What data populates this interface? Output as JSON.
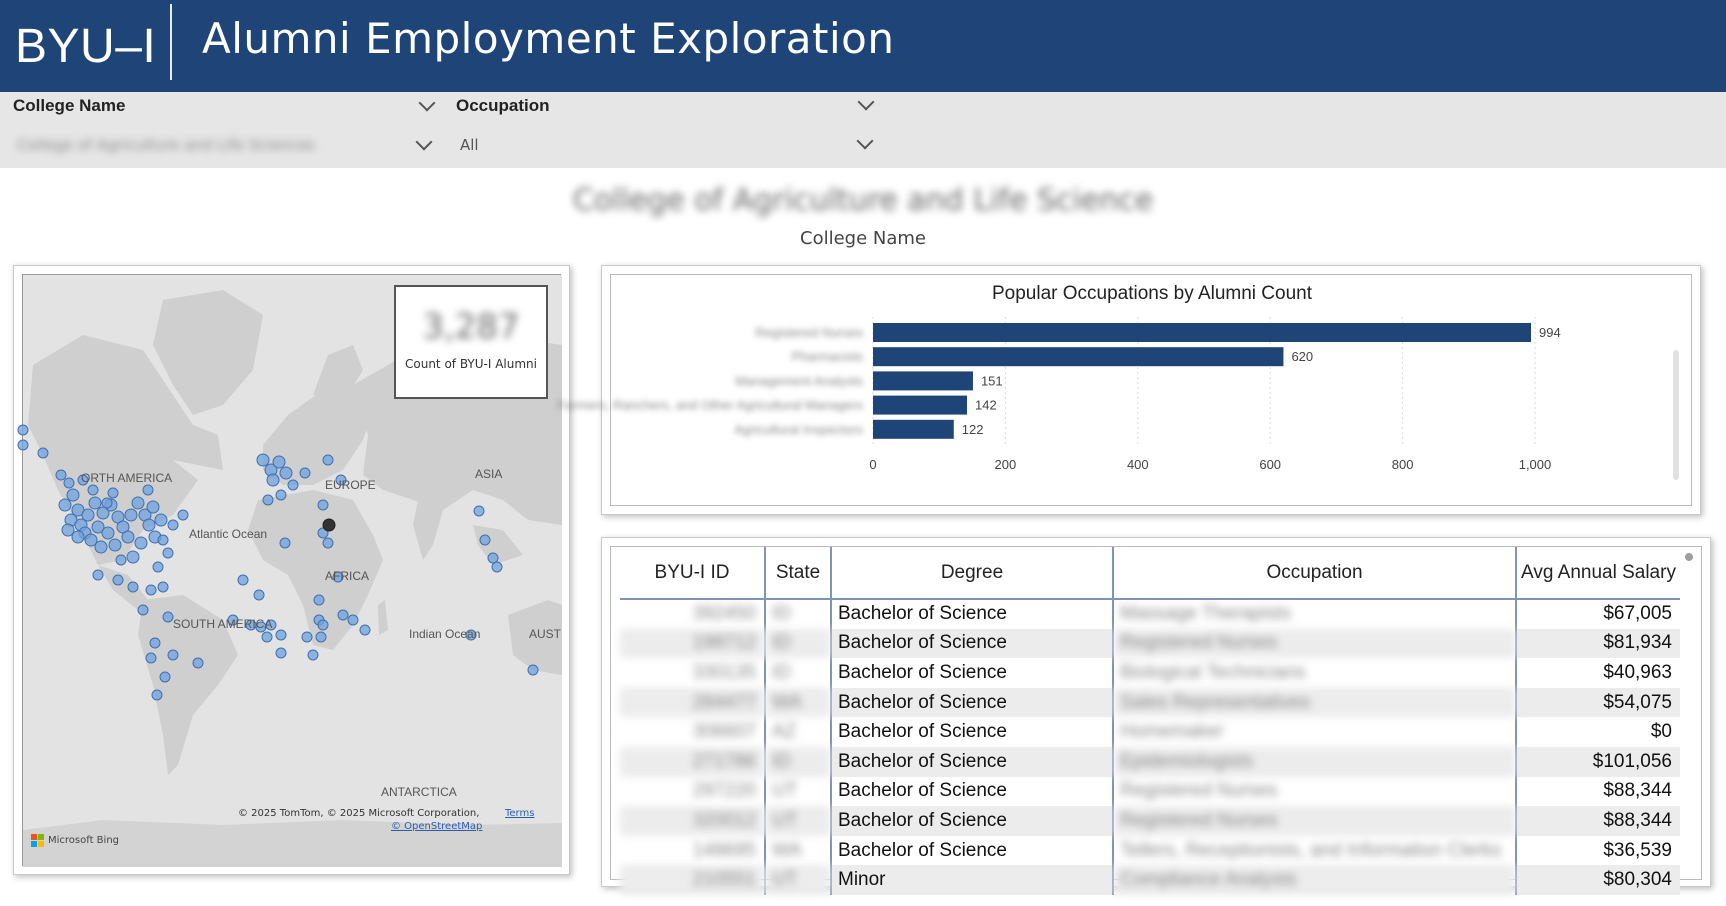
{
  "header": {
    "brand": "BYU–I",
    "title": "Alumni Employment Exploration"
  },
  "slicers": {
    "college": {
      "label": "College Name",
      "value": "College of Agriculture and Life Sciences"
    },
    "occupation": {
      "label": "Occupation",
      "value": "All"
    }
  },
  "selected_college": {
    "name": "College of Agriculture and Life Science",
    "caption": "College Name"
  },
  "map": {
    "legend_value": "3,287",
    "legend_caption": "Count of BYU-I Alumni",
    "labels": {
      "north_america": "ORTH AMERICA",
      "europe": "EUROPE",
      "asia": "ASIA",
      "atlantic": "Atlantic Ocean",
      "africa": "AFRICA",
      "south_america": "SOUTH AMERICA",
      "indian": "Indian Ocean",
      "australia": "AUST",
      "antarctica": "ANTARCTICA"
    },
    "attribution": "© 2025 TomTom, © 2025 Microsoft Corporation,",
    "terms": "Terms",
    "osm": "© OpenStreetMap",
    "bing": "Microsoft Bing"
  },
  "chart_data": {
    "type": "bar",
    "orientation": "horizontal",
    "title": "Popular Occupations by Alumni Count",
    "categories": [
      "Registered Nurses",
      "Pharmacists",
      "Management Analysts",
      "Farmers, Ranchers, and Other Agricultural Managers",
      "Agricultural Inspectors"
    ],
    "values": [
      994,
      620,
      151,
      142,
      122
    ],
    "value_labels": [
      "994",
      "620",
      "151",
      "142",
      "122"
    ],
    "xticks": [
      "0",
      "200",
      "400",
      "600",
      "800",
      "1,000"
    ],
    "xlim": [
      0,
      1000
    ],
    "color": "#1f4578"
  },
  "table": {
    "columns": [
      "BYU-I ID",
      "State",
      "Degree",
      "Occupation",
      "Avg Annual Salary"
    ],
    "rows": [
      {
        "id": "392450",
        "state": "ID",
        "degree": "Bachelor of Science",
        "occupation": "Massage Therapists",
        "salary": "$67,005"
      },
      {
        "id": "198712",
        "state": "ID",
        "degree": "Bachelor of Science",
        "occupation": "Registered Nurses",
        "salary": "$81,934"
      },
      {
        "id": "330135",
        "state": "ID",
        "degree": "Bachelor of Science",
        "occupation": "Biological Technicians",
        "salary": "$40,963"
      },
      {
        "id": "284477",
        "state": "WA",
        "degree": "Bachelor of Science",
        "occupation": "Sales Representatives",
        "salary": "$54,075"
      },
      {
        "id": "306607",
        "state": "AZ",
        "degree": "Bachelor of Science",
        "occupation": "Homemaker",
        "salary": "$0"
      },
      {
        "id": "271786",
        "state": "ID",
        "degree": "Bachelor of Science",
        "occupation": "Epidemiologists",
        "salary": "$101,056"
      },
      {
        "id": "297220",
        "state": "UT",
        "degree": "Bachelor of Science",
        "occupation": "Registered Nurses",
        "salary": "$88,344"
      },
      {
        "id": "320012",
        "state": "UT",
        "degree": "Bachelor of Science",
        "occupation": "Registered Nurses",
        "salary": "$88,344"
      },
      {
        "id": "148695",
        "state": "WA",
        "degree": "Bachelor of Science",
        "occupation": "Tellers, Receptionists, and Information Clerks",
        "salary": "$36,539"
      },
      {
        "id": "210551",
        "state": "UT",
        "degree": "Minor",
        "occupation": "Compliance Analysts",
        "salary": "$80,304"
      }
    ]
  },
  "colors": {
    "header_bg": "#1f4578",
    "bar": "#1f4578",
    "slicer_bg": "#e6e6e6",
    "marker": "#6fa1df"
  }
}
